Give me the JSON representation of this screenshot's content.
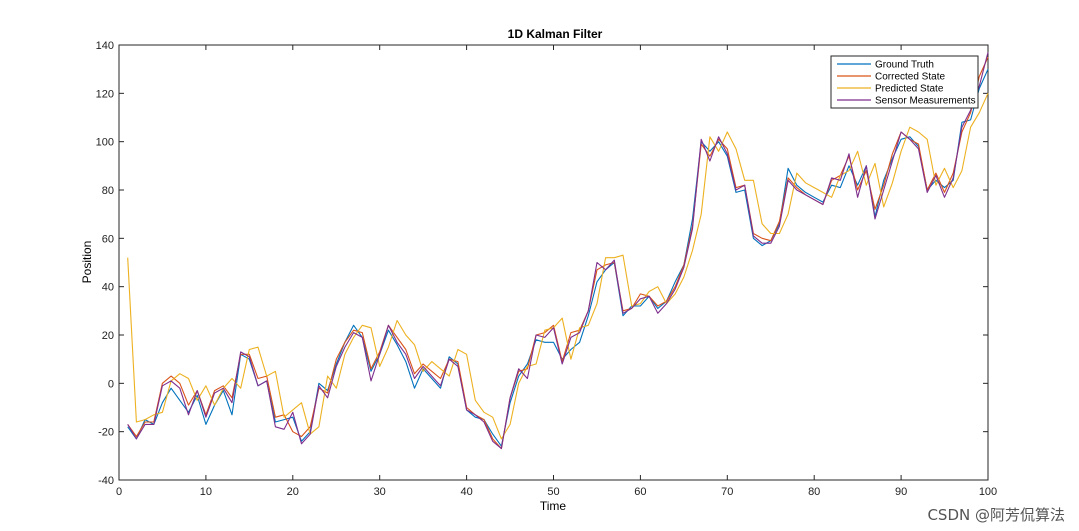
{
  "chart_data": {
    "type": "line",
    "title": "1D Kalman Filter",
    "xlabel": "Time",
    "ylabel": "Position",
    "xlim": [
      0,
      100
    ],
    "ylim": [
      -40,
      140
    ],
    "xticks": [
      0,
      10,
      20,
      30,
      40,
      50,
      60,
      70,
      80,
      90,
      100
    ],
    "yticks": [
      -40,
      -20,
      0,
      20,
      40,
      60,
      80,
      100,
      120,
      140
    ],
    "grid": false,
    "legend_position": "top-right",
    "x": [
      1,
      2,
      3,
      4,
      5,
      6,
      7,
      8,
      9,
      10,
      11,
      12,
      13,
      14,
      15,
      16,
      17,
      18,
      19,
      20,
      21,
      22,
      23,
      24,
      25,
      26,
      27,
      28,
      29,
      30,
      31,
      32,
      33,
      34,
      35,
      36,
      37,
      38,
      39,
      40,
      41,
      42,
      43,
      44,
      45,
      46,
      47,
      48,
      49,
      50,
      51,
      52,
      53,
      54,
      55,
      56,
      57,
      58,
      59,
      60,
      61,
      62,
      63,
      64,
      65,
      66,
      67,
      68,
      69,
      70,
      71,
      72,
      73,
      74,
      75,
      76,
      77,
      78,
      79,
      80,
      81,
      82,
      83,
      84,
      85,
      86,
      87,
      88,
      89,
      90,
      91,
      92,
      93,
      94,
      95,
      96,
      97,
      98,
      99,
      100
    ],
    "series": [
      {
        "name": "Ground Truth",
        "color": "#0072bd",
        "values": [
          -18,
          -23,
          -15,
          -17,
          -8,
          -2,
          -7,
          -12,
          -5,
          -17,
          -9,
          -3,
          -13,
          12,
          10,
          -1,
          1,
          -16,
          -15,
          -14,
          -24,
          -20,
          0,
          -3,
          8,
          17,
          24,
          19,
          5,
          12,
          22,
          16,
          9,
          -2,
          6,
          2,
          -2,
          11,
          8,
          -11,
          -14,
          -15,
          -21,
          -26,
          -8,
          3,
          8,
          18,
          17,
          17,
          10,
          14,
          17,
          28,
          42,
          47,
          50,
          28,
          32,
          32,
          36,
          31,
          34,
          42,
          49,
          68,
          100,
          96,
          100,
          94,
          79,
          80,
          60,
          57,
          59,
          66,
          89,
          82,
          79,
          77,
          75,
          82,
          81,
          90,
          82,
          90,
          69,
          84,
          93,
          101,
          102,
          98,
          80,
          84,
          81,
          84,
          108,
          109,
          122,
          130
        ]
      },
      {
        "name": "Corrected State",
        "color": "#d95319",
        "values": [
          -17,
          -22,
          -16,
          -16,
          0,
          3,
          0,
          -9,
          -3,
          -13,
          -3,
          -1,
          -6,
          12,
          12,
          2,
          3,
          -14,
          -13,
          -20,
          -22,
          -18,
          -2,
          -4,
          10,
          17,
          22,
          21,
          6,
          13,
          24,
          19,
          14,
          4,
          8,
          5,
          2,
          10,
          9,
          -10,
          -13,
          -15,
          -23,
          -27,
          -6,
          5,
          6,
          20,
          21,
          24,
          9,
          21,
          22,
          30,
          47,
          49,
          50,
          30,
          31,
          37,
          36,
          32,
          34,
          40,
          49,
          65,
          99,
          94,
          101,
          97,
          81,
          82,
          62,
          60,
          59,
          67,
          85,
          81,
          78,
          76,
          74,
          84,
          86,
          94,
          80,
          88,
          72,
          82,
          95,
          104,
          101,
          99,
          80,
          87,
          79,
          87,
          104,
          112,
          127,
          135
        ]
      },
      {
        "name": "Predicted State",
        "color": "#edb120",
        "values": [
          52,
          -16,
          -15,
          -13,
          -12,
          1,
          4,
          2,
          -7,
          -1,
          -9,
          -2,
          2,
          -2,
          14,
          15,
          3,
          5,
          -14,
          -11,
          -8,
          -21,
          -18,
          3,
          -2,
          12,
          19,
          24,
          23,
          7,
          15,
          26,
          20,
          16,
          5,
          9,
          6,
          3,
          14,
          12,
          -7,
          -12,
          -14,
          -23,
          -17,
          0,
          7,
          8,
          22,
          23,
          27,
          10,
          23,
          24,
          33,
          52,
          52,
          53,
          32,
          33,
          38,
          40,
          33,
          37,
          44,
          55,
          70,
          102,
          96,
          104,
          97,
          84,
          84,
          66,
          62,
          62,
          70,
          87,
          83,
          81,
          79,
          77,
          86,
          88,
          96,
          82,
          91,
          73,
          83,
          96,
          106,
          104,
          101,
          82,
          89,
          81,
          88,
          106,
          112,
          120
        ]
      },
      {
        "name": "Sensor Measurements",
        "color": "#7e2f8e",
        "values": [
          -17,
          -23,
          -17,
          -17,
          -1,
          1,
          -2,
          -13,
          -3,
          -14,
          -4,
          -2,
          -8,
          13,
          11,
          -1,
          1,
          -18,
          -19,
          -12,
          -25,
          -21,
          -1,
          -6,
          7,
          15,
          21,
          19,
          1,
          12,
          24,
          17,
          12,
          2,
          7,
          3,
          -1,
          10,
          7,
          -11,
          -13,
          -16,
          -24,
          -27,
          -6,
          6,
          2,
          20,
          19,
          23,
          8,
          19,
          21,
          30,
          50,
          47,
          51,
          29,
          31,
          35,
          36,
          29,
          33,
          39,
          48,
          64,
          101,
          92,
          102,
          95,
          80,
          82,
          61,
          58,
          58,
          65,
          84,
          80,
          78,
          76,
          74,
          85,
          84,
          95,
          77,
          90,
          68,
          80,
          92,
          104,
          101,
          97,
          79,
          86,
          77,
          85,
          106,
          113,
          123,
          137
        ]
      }
    ]
  },
  "watermark": {
    "text": "CSDN @阿芳侃算法"
  }
}
